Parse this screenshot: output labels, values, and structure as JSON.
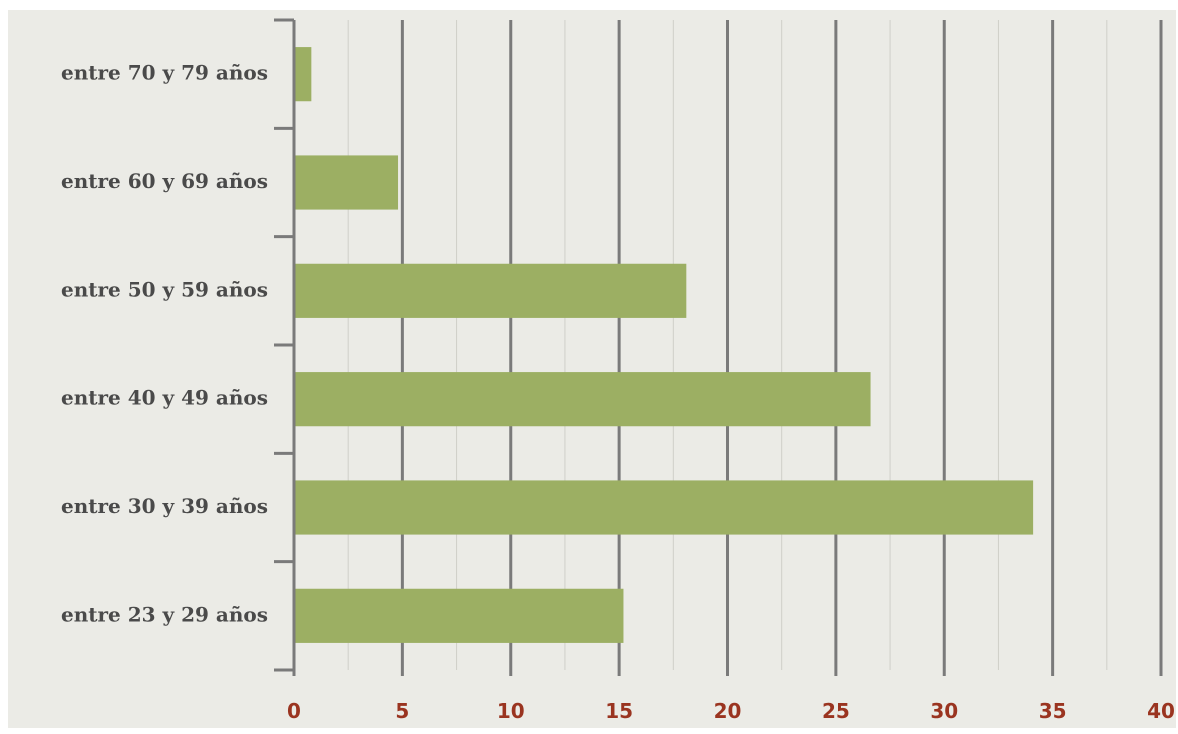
{
  "chart_data": {
    "type": "bar",
    "orientation": "horizontal",
    "categories": [
      "entre 70 y 79 años",
      "entre 60 y 69 años",
      "entre 50 y 59 años",
      "entre 40 y 49 años",
      "entre 30 y 39 años",
      "entre 23 y 29 años"
    ],
    "values": [
      0.8,
      4.8,
      18.1,
      26.6,
      34.1,
      15.2
    ],
    "xlim": [
      0,
      40
    ],
    "xticks": [
      "0",
      "5",
      "10",
      "15",
      "20",
      "25",
      "30",
      "35",
      "40"
    ],
    "minor_grid_step": 2.5,
    "grid": true,
    "legend": "none",
    "title": "",
    "xlabel": "",
    "ylabel": ""
  },
  "colors": {
    "background": "#ebebe6",
    "bar": "#9caf63",
    "major_grid": "#7a7a7a",
    "minor_grid": "#cfcfc9",
    "category_text": "#4a4a4a",
    "tick_text": "#9a3420"
  }
}
